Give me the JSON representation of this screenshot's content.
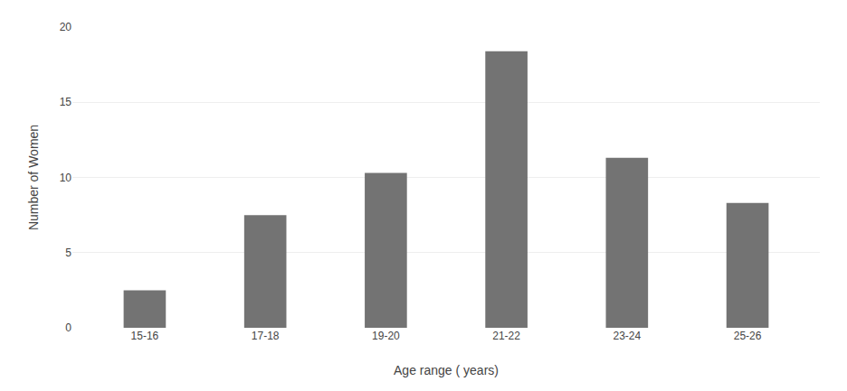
{
  "chart_data": {
    "type": "bar",
    "categories": [
      "15-16",
      "17-18",
      "19-20",
      "21-22",
      "23-24",
      "25-26"
    ],
    "values": [
      2.5,
      7.5,
      10.3,
      18.4,
      11.3,
      8.3
    ],
    "color": "#737373",
    "xlabel": "Age range ( years)",
    "ylabel": "Number of Women",
    "ylim": [
      0,
      20
    ],
    "yticks": [
      0,
      5,
      10,
      15,
      20
    ],
    "grid": true
  }
}
